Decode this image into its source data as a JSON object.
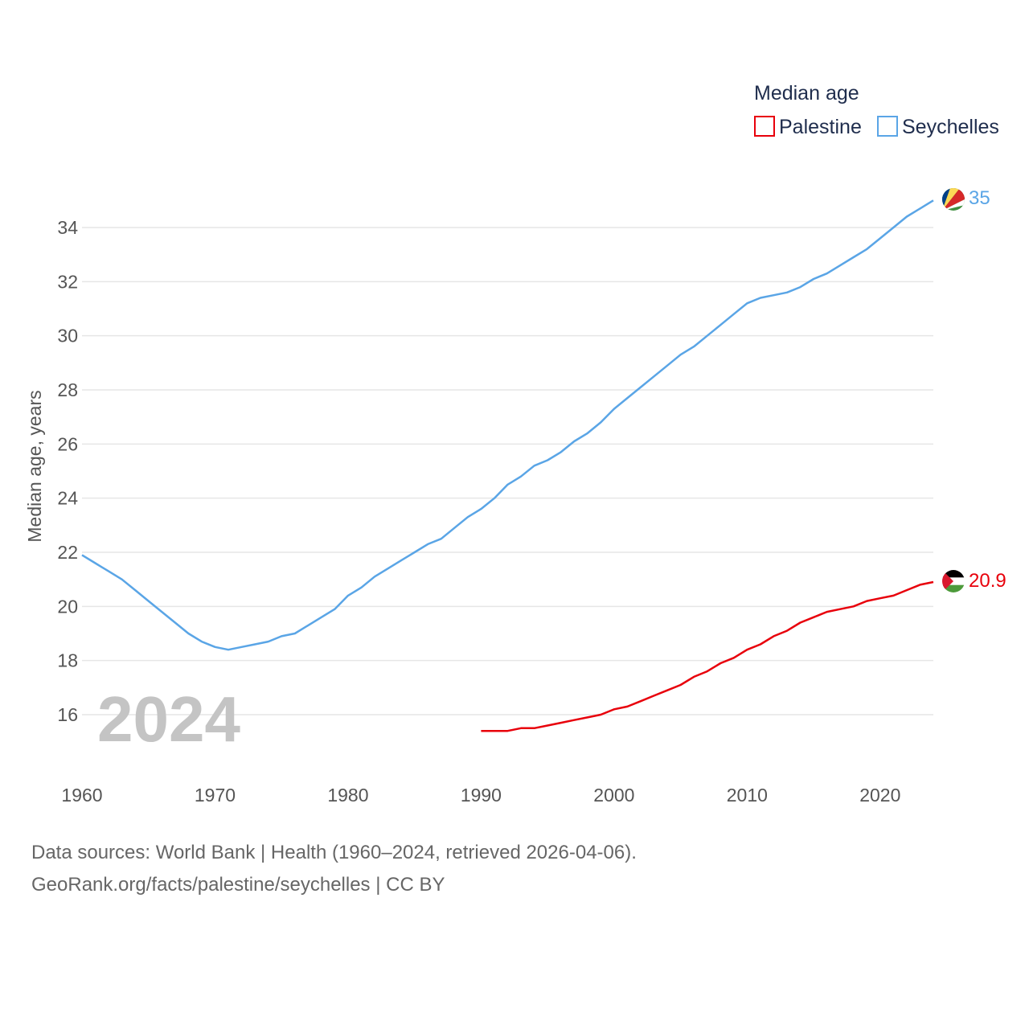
{
  "chart_data": {
    "type": "line",
    "title": "Median age",
    "ylabel": "Median age, years",
    "xlabel": "",
    "xlim": [
      1960,
      2024
    ],
    "ylim": [
      14.8,
      35.8
    ],
    "x_ticks": [
      1960,
      1970,
      1980,
      1990,
      2000,
      2010,
      2020
    ],
    "y_ticks": [
      16,
      18,
      20,
      22,
      24,
      26,
      28,
      30,
      32,
      34
    ],
    "grid": true,
    "legend": "top-right",
    "year_label": "2024",
    "series": [
      {
        "name": "Palestine",
        "color": "#e8000b",
        "end_label": "20.9",
        "x": [
          1990,
          1991,
          1992,
          1993,
          1994,
          1995,
          1996,
          1997,
          1998,
          1999,
          2000,
          2001,
          2002,
          2003,
          2004,
          2005,
          2006,
          2007,
          2008,
          2009,
          2010,
          2011,
          2012,
          2013,
          2014,
          2015,
          2016,
          2017,
          2018,
          2019,
          2020,
          2021,
          2022,
          2023,
          2024
        ],
        "values": [
          15.4,
          15.4,
          15.4,
          15.5,
          15.5,
          15.6,
          15.7,
          15.8,
          15.9,
          16.0,
          16.2,
          16.3,
          16.5,
          16.7,
          16.9,
          17.1,
          17.4,
          17.6,
          17.9,
          18.1,
          18.4,
          18.6,
          18.9,
          19.1,
          19.4,
          19.6,
          19.8,
          19.9,
          20.0,
          20.2,
          20.3,
          20.4,
          20.6,
          20.8,
          20.9
        ]
      },
      {
        "name": "Seychelles",
        "color": "#5aa5e6",
        "end_label": "35",
        "x": [
          1960,
          1961,
          1962,
          1963,
          1964,
          1965,
          1966,
          1967,
          1968,
          1969,
          1970,
          1971,
          1972,
          1973,
          1974,
          1975,
          1976,
          1977,
          1978,
          1979,
          1980,
          1981,
          1982,
          1983,
          1984,
          1985,
          1986,
          1987,
          1988,
          1989,
          1990,
          1991,
          1992,
          1993,
          1994,
          1995,
          1996,
          1997,
          1998,
          1999,
          2000,
          2001,
          2002,
          2003,
          2004,
          2005,
          2006,
          2007,
          2008,
          2009,
          2010,
          2011,
          2012,
          2013,
          2014,
          2015,
          2016,
          2017,
          2018,
          2019,
          2020,
          2021,
          2022,
          2023,
          2024
        ],
        "values": [
          21.9,
          21.6,
          21.3,
          21.0,
          20.6,
          20.2,
          19.8,
          19.4,
          19.0,
          18.7,
          18.5,
          18.4,
          18.5,
          18.6,
          18.7,
          18.9,
          19.0,
          19.3,
          19.6,
          19.9,
          20.4,
          20.7,
          21.1,
          21.4,
          21.7,
          22.0,
          22.3,
          22.5,
          22.9,
          23.3,
          23.6,
          24.0,
          24.5,
          24.8,
          25.2,
          25.4,
          25.7,
          26.1,
          26.4,
          26.8,
          27.3,
          27.7,
          28.1,
          28.5,
          28.9,
          29.3,
          29.6,
          30.0,
          30.4,
          30.8,
          31.2,
          31.4,
          31.5,
          31.6,
          31.8,
          32.1,
          32.3,
          32.6,
          32.9,
          33.2,
          33.6,
          34.0,
          34.4,
          34.7,
          35.0
        ]
      }
    ]
  },
  "footer": {
    "sources": "Data sources: World Bank | Health (1960–2024, retrieved 2026-04-06).",
    "attribution": "GeoRank.org/facts/palestine/seychelles | CC BY"
  },
  "flags": {
    "palestine_icon": "palestine-flag-icon",
    "seychelles_icon": "seychelles-flag-icon"
  }
}
